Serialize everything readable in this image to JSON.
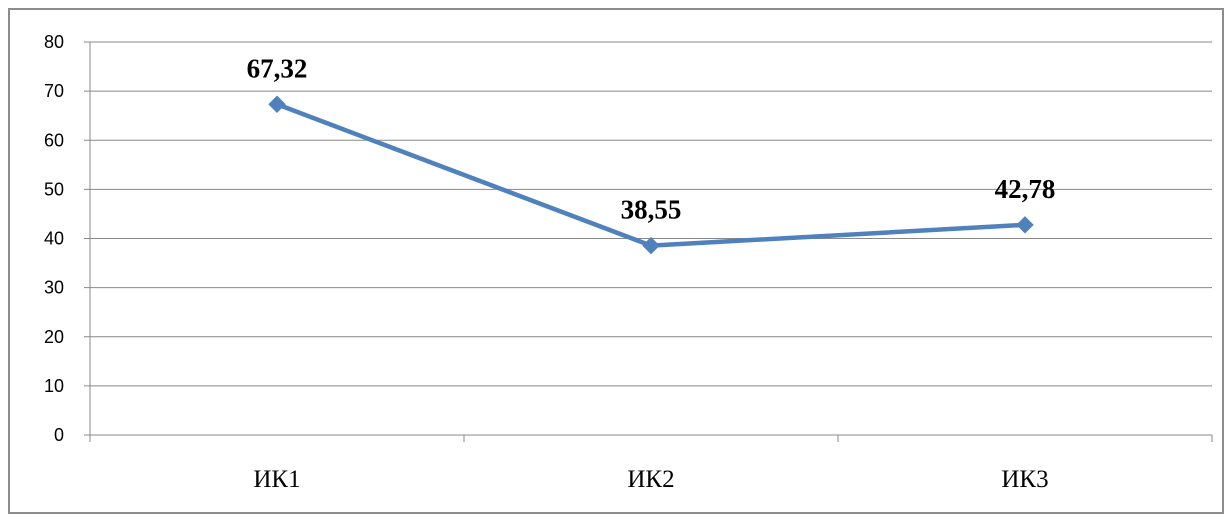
{
  "chart_data": {
    "type": "line",
    "categories": [
      "ИК1",
      "ИК2",
      "ИК3"
    ],
    "series": [
      {
        "values": [
          67.32,
          38.55,
          42.78
        ],
        "labels": [
          "67,32",
          "38,55",
          "42,78"
        ]
      }
    ],
    "title": "",
    "xlabel": "",
    "ylabel": "",
    "ylim": [
      0,
      80
    ],
    "yticks": [
      "0",
      "10",
      "20",
      "30",
      "40",
      "50",
      "60",
      "70",
      "80"
    ],
    "grid": true,
    "legend": "none",
    "colors": {
      "line": "#4F81BD",
      "grid": "#888888",
      "axis": "#888888"
    }
  }
}
